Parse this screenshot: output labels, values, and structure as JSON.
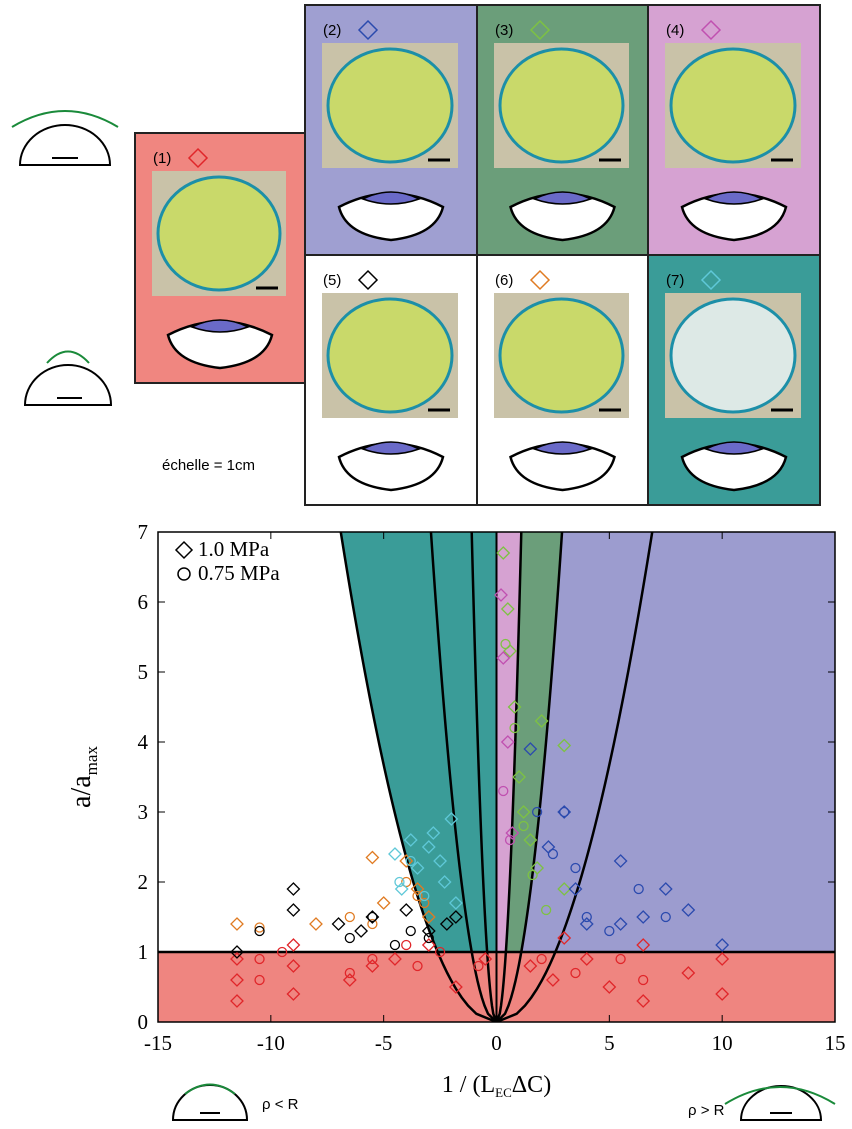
{
  "panels": [
    {
      "label": "(1)",
      "color": "#f08680",
      "marker_color": "#e0262a"
    },
    {
      "label": "(2)",
      "color": "#9f9fd1",
      "marker_color": "#2b4aae"
    },
    {
      "label": "(3)",
      "color": "#6b9e7a",
      "marker_color": "#7dc242"
    },
    {
      "label": "(4)",
      "color": "#d6a2d2",
      "marker_color": "#c050b0"
    },
    {
      "label": "(5)",
      "color": "#ffffff",
      "marker_color": "#000000"
    },
    {
      "label": "(6)",
      "color": "#ffffff",
      "marker_color": "#e07b22"
    },
    {
      "label": "(7)",
      "color": "#3a9c98",
      "marker_color": "#5fc8d8"
    }
  ],
  "scale_note": "échelle = 1cm",
  "annotations": {
    "left": "ρ < R",
    "right": "ρ > R"
  },
  "chart_data": {
    "type": "scatter",
    "xlabel": {
      "pre": "1 / (L",
      "sub": "EC",
      "post": "ΔC)"
    },
    "ylabel": {
      "main": "a/a",
      "sub": "max"
    },
    "xlim": [
      -15,
      15
    ],
    "ylim": [
      0,
      7
    ],
    "xticks": [
      -15,
      -10,
      -5,
      0,
      5,
      10,
      15
    ],
    "yticks": [
      0,
      1,
      2,
      3,
      4,
      5,
      6,
      7
    ],
    "threshold": 1,
    "parabola_coeffs": [
      0.147,
      5.8,
      0.83
    ],
    "region_colors": {
      "low": "#ef8580",
      "left": "#3a9c98",
      "center": "#d6a2d2",
      "middle": "#6b9e7a",
      "right": "#9c9ccf"
    },
    "legend": [
      {
        "marker": "diamond",
        "label": "1.0  MPa"
      },
      {
        "marker": "circle",
        "label": "0.75 MPa"
      }
    ],
    "series": [
      {
        "color": "#e0262a",
        "marker": "diamond",
        "x": [
          -11.5,
          -11.5,
          -11.5,
          -9,
          -9,
          -9,
          -6.5,
          -5.5,
          -4.5,
          -3,
          -1.8,
          -0.5,
          1.5,
          2.5,
          3,
          4,
          5,
          6.5,
          6.5,
          8.5,
          10,
          10
        ],
        "y": [
          0.3,
          0.6,
          0.9,
          0.4,
          0.8,
          1.1,
          0.6,
          0.8,
          0.9,
          1.1,
          0.5,
          0.9,
          0.8,
          0.6,
          1.2,
          0.9,
          0.5,
          0.3,
          1.1,
          0.7,
          0.4,
          0.9
        ]
      },
      {
        "color": "#e0262a",
        "marker": "circle",
        "x": [
          -10.5,
          -10.5,
          -9.5,
          -6.5,
          -5.5,
          -4,
          -3.5,
          -2.5,
          -0.8,
          2,
          3.5,
          5.5,
          6.5
        ],
        "y": [
          0.6,
          0.9,
          1.0,
          0.7,
          0.9,
          1.1,
          0.8,
          1.0,
          0.8,
          0.9,
          0.7,
          0.9,
          0.6
        ]
      },
      {
        "color": "#e07b22",
        "marker": "diamond",
        "x": [
          -11.5,
          -8,
          -5.5,
          -5,
          -4,
          -3.5,
          -3
        ],
        "y": [
          1.4,
          1.4,
          2.35,
          1.7,
          2.3,
          1.9,
          1.5
        ]
      },
      {
        "color": "#e07b22",
        "marker": "circle",
        "x": [
          -10.5,
          -6.5,
          -5.5,
          -4,
          -3.5,
          -3.2
        ],
        "y": [
          1.35,
          1.5,
          1.4,
          2.0,
          1.8,
          1.7
        ]
      },
      {
        "color": "#000000",
        "marker": "diamond",
        "x": [
          -11.5,
          -9,
          -9,
          -7,
          -6,
          -5.5,
          -4,
          -3,
          -2.2,
          -1.8
        ],
        "y": [
          1.0,
          1.9,
          1.6,
          1.4,
          1.3,
          1.5,
          1.6,
          1.3,
          1.4,
          1.5
        ]
      },
      {
        "color": "#000000",
        "marker": "circle",
        "x": [
          -10.5,
          -6.5,
          -5.5,
          -4.5,
          -3.8,
          -3
        ],
        "y": [
          1.3,
          1.2,
          1.5,
          1.1,
          1.3,
          1.2
        ]
      },
      {
        "color": "#5fc8d8",
        "marker": "diamond",
        "x": [
          -4.2,
          -3.5,
          -3,
          -2.8,
          -2.5,
          -2.3,
          -2,
          -1.8,
          -3.8,
          -4.5
        ],
        "y": [
          1.9,
          2.2,
          2.5,
          2.7,
          2.3,
          2.0,
          2.9,
          1.7,
          2.6,
          2.4
        ]
      },
      {
        "color": "#5fc8d8",
        "marker": "circle",
        "x": [
          -4.3,
          -3.8,
          -3.2
        ],
        "y": [
          2.0,
          2.3,
          1.8
        ]
      },
      {
        "color": "#7dc242",
        "marker": "diamond",
        "x": [
          0.3,
          0.5,
          0.6,
          0.8,
          1.0,
          1.2,
          1.5,
          1.8,
          2,
          3,
          3
        ],
        "y": [
          6.7,
          5.9,
          5.3,
          4.5,
          3.5,
          3.0,
          2.6,
          2.2,
          4.3,
          3.95,
          1.9
        ]
      },
      {
        "color": "#7dc242",
        "marker": "circle",
        "x": [
          0.4,
          0.8,
          1.2,
          1.6,
          2.2
        ],
        "y": [
          5.4,
          4.2,
          2.8,
          2.1,
          1.6
        ]
      },
      {
        "color": "#c050b0",
        "marker": "diamond",
        "x": [
          0.2,
          0.3,
          0.5,
          0.7
        ],
        "y": [
          6.1,
          5.2,
          4.0,
          2.7
        ]
      },
      {
        "color": "#c050b0",
        "marker": "circle",
        "x": [
          0.3,
          0.6
        ],
        "y": [
          3.3,
          2.6
        ]
      },
      {
        "color": "#2b4aae",
        "marker": "diamond",
        "x": [
          1.5,
          2.3,
          3,
          3.5,
          4,
          5.5,
          5.5,
          6.5,
          7.5,
          8.5,
          10
        ],
        "y": [
          3.9,
          2.5,
          3.0,
          1.9,
          1.4,
          2.3,
          1.4,
          1.5,
          1.9,
          1.6,
          1.1
        ]
      },
      {
        "color": "#2b4aae",
        "marker": "circle",
        "x": [
          1.8,
          2.5,
          3,
          3.5,
          4,
          5,
          6.3,
          7.5
        ],
        "y": [
          3.0,
          2.4,
          3.0,
          2.2,
          1.5,
          1.3,
          1.9,
          1.5
        ]
      }
    ]
  }
}
